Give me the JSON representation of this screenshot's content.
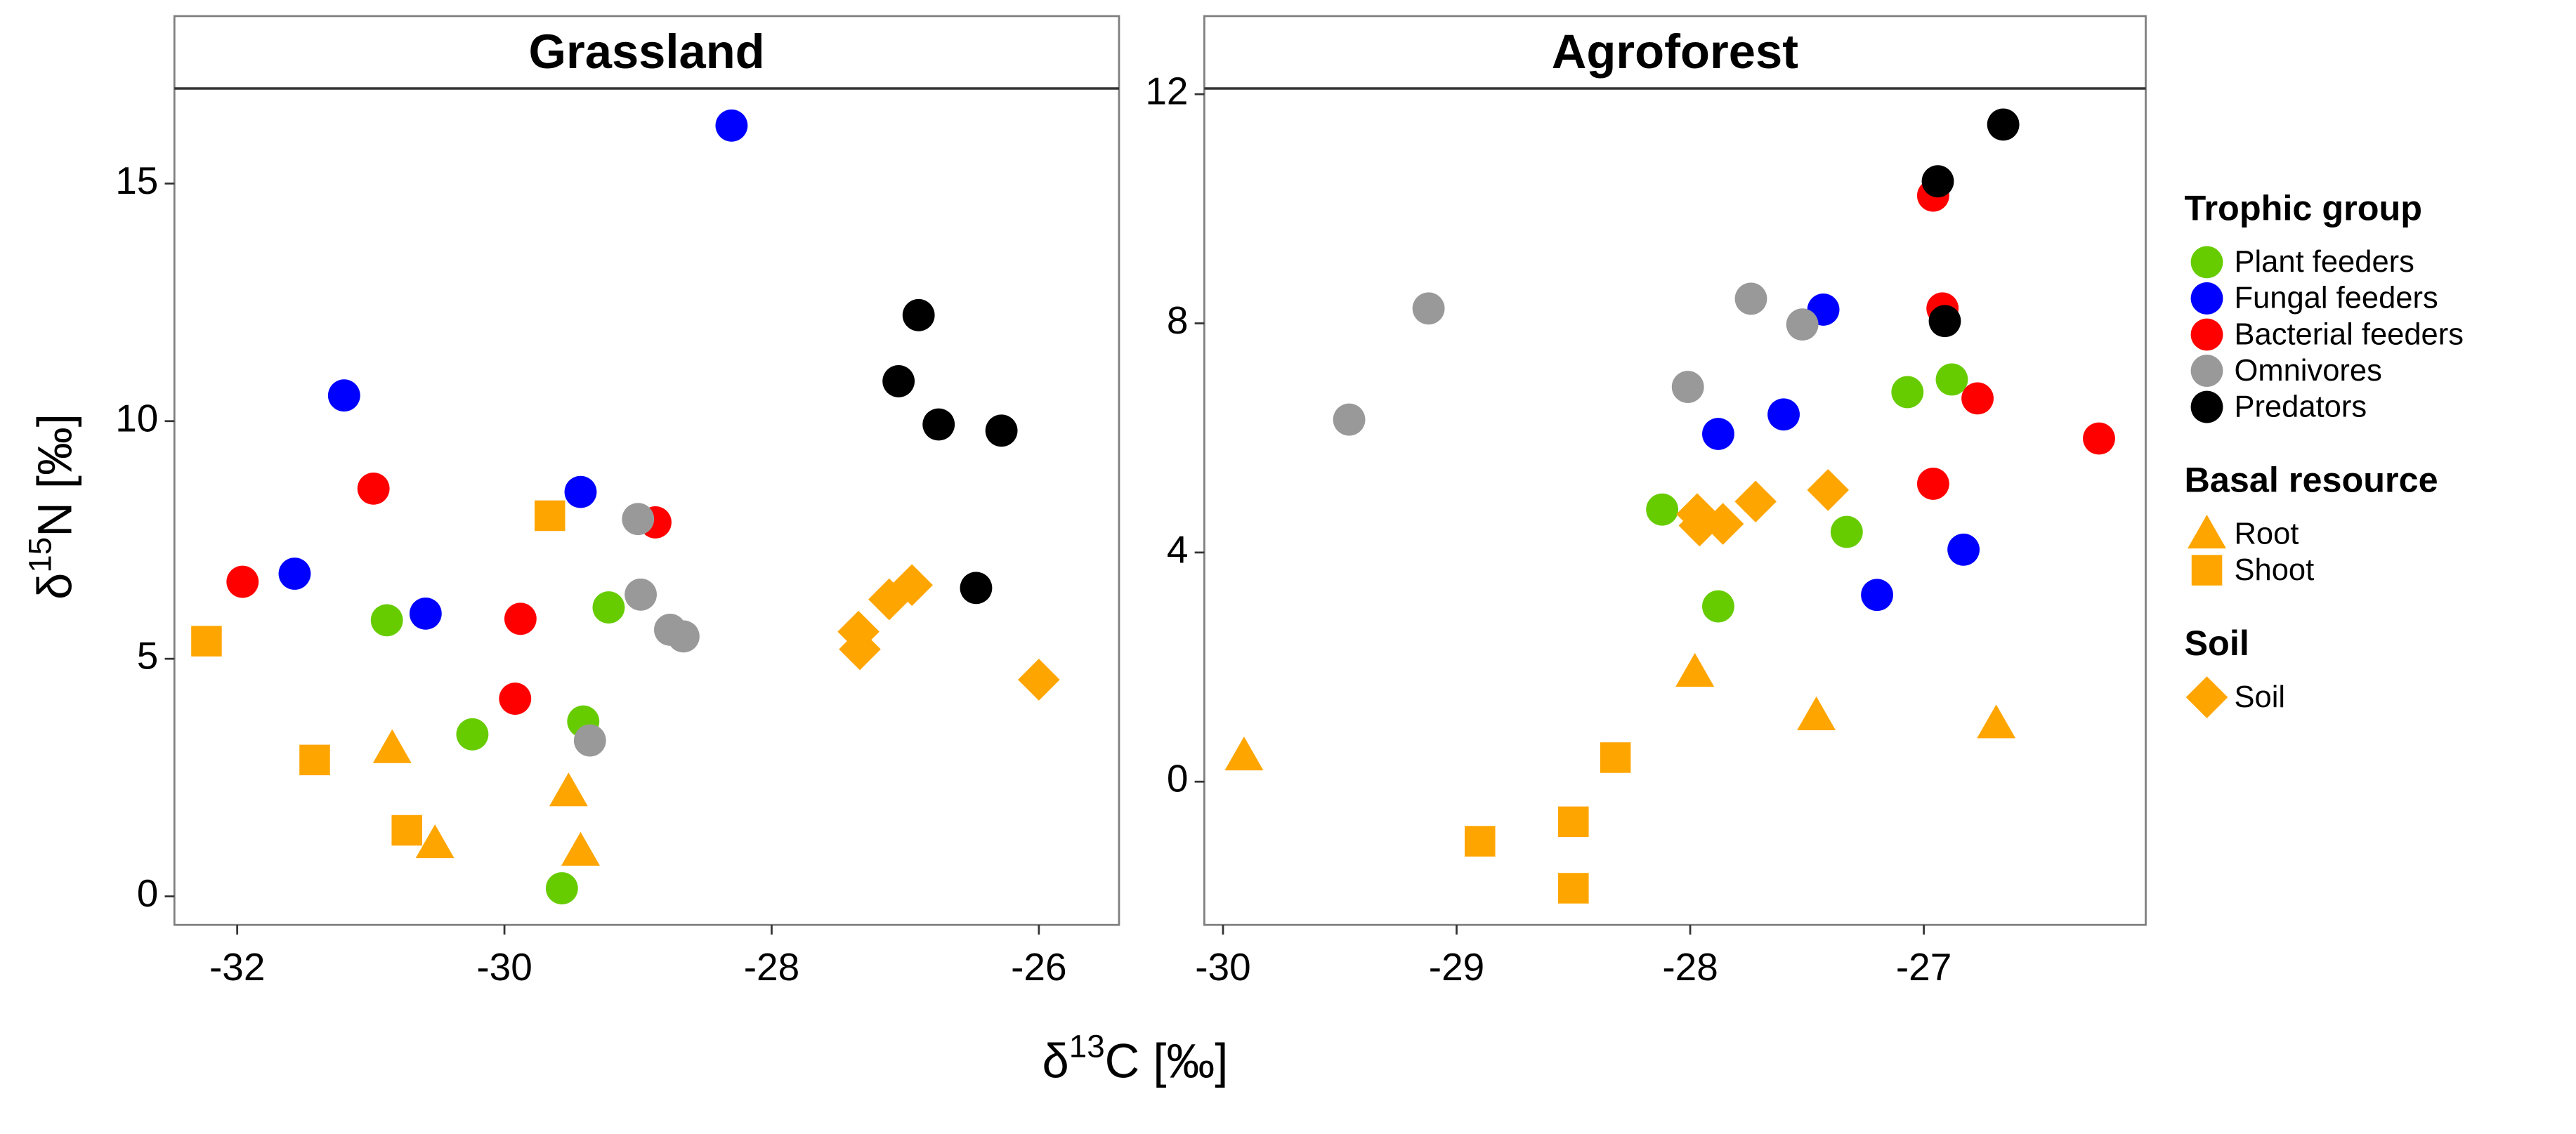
{
  "chart_data": [
    {
      "type": "scatter",
      "title": "Grassland",
      "xlim": [
        -32.47,
        -25.4
      ],
      "xticks": [
        -32,
        -30,
        -28,
        -26
      ],
      "ylim": [
        -0.6,
        17
      ],
      "yticks": [
        0,
        5,
        10,
        15
      ],
      "series": [
        {
          "x": [
            -30.88,
            -30.24,
            -29.41,
            -29.57,
            -29.22
          ],
          "values": [
            5.81,
            3.41,
            3.68,
            0.17,
            6.08
          ]
        },
        {
          "x": [
            -28.3,
            -31.2,
            -31.57,
            -30.59,
            -29.43
          ],
          "values": [
            16.22,
            10.54,
            6.79,
            5.95,
            8.51
          ]
        },
        {
          "x": [
            -31.96,
            -30.98,
            -29.88,
            -29.92,
            -28.87
          ],
          "values": [
            6.62,
            8.58,
            5.84,
            4.16,
            7.87
          ]
        },
        {
          "x": [
            -29.0,
            -28.98,
            -29.36,
            -28.76,
            -28.66
          ],
          "values": [
            7.94,
            6.35,
            3.28,
            5.61,
            5.47
          ]
        },
        {
          "x": [
            -26.9,
            -27.05,
            -26.75,
            -26.28,
            -26.47
          ],
          "values": [
            12.23,
            10.84,
            9.93,
            9.8,
            6.49
          ]
        },
        {
          "x": [
            -30.84,
            -29.52,
            -30.52,
            -29.43
          ],
          "values": [
            3.11,
            2.2,
            1.11,
            0.95
          ]
        },
        {
          "x": [
            -32.23,
            -29.66,
            -31.42,
            -30.73
          ],
          "values": [
            5.37,
            8.01,
            2.87,
            1.39
          ]
        },
        {
          "x": [
            -27.35,
            -27.34,
            -27.12,
            -26.95,
            -26.0
          ],
          "values": [
            5.57,
            5.2,
            6.25,
            6.55,
            4.56
          ]
        }
      ]
    },
    {
      "type": "scatter",
      "title": "Agroforest",
      "xlim": [
        -30.08,
        -26.05
      ],
      "xticks": [
        -30,
        -29,
        -28,
        -27
      ],
      "ylim": [
        -2.5,
        12.1
      ],
      "yticks": [
        0,
        4,
        8,
        12
      ],
      "series": [
        {
          "x": [
            -28.12,
            -27.88,
            -27.33,
            -27.07,
            -26.88
          ],
          "values": [
            4.75,
            3.06,
            4.36,
            6.8,
            7.02
          ]
        },
        {
          "x": [
            -27.43,
            -27.88,
            -27.6,
            -26.83,
            -27.2
          ],
          "values": [
            8.24,
            6.07,
            6.41,
            4.05,
            3.26
          ]
        },
        {
          "x": [
            -26.96,
            -26.92,
            -26.77,
            -26.96,
            -26.25
          ],
          "values": [
            10.23,
            8.26,
            6.69,
            5.2,
            5.99
          ]
        },
        {
          "x": [
            -29.46,
            -29.12,
            -28.01,
            -27.74,
            -27.52
          ],
          "values": [
            6.32,
            8.26,
            6.89,
            8.43,
            7.98
          ]
        },
        {
          "x": [
            -26.94,
            -26.66,
            -26.91
          ],
          "values": [
            10.48,
            11.47,
            8.04
          ]
        },
        {
          "x": [
            -29.91,
            -27.98,
            -27.46,
            -26.69
          ],
          "values": [
            0.45,
            1.91,
            1.15,
            1.01
          ]
        },
        {
          "x": [
            -28.9,
            -28.5,
            -28.5,
            -28.32
          ],
          "values": [
            -1.04,
            -0.7,
            -1.86,
            0.42
          ]
        },
        {
          "x": [
            -27.97,
            -27.96,
            -27.86,
            -27.72,
            -27.41
          ],
          "values": [
            4.67,
            4.47,
            4.5,
            4.89,
            5.09
          ]
        }
      ]
    }
  ],
  "x_label": [
    "δ",
    "13",
    "C [‰]"
  ],
  "y_label": [
    "δ",
    "15",
    "N [‰]"
  ],
  "legend": [
    {
      "title": "Trophic group",
      "entries": [
        {
          "name": "Plant feeders",
          "color": "#66cc00",
          "marker": "circle"
        },
        {
          "name": "Fungal feeders",
          "color": "#0000ff",
          "marker": "circle"
        },
        {
          "name": "Bacterial feeders",
          "color": "#ff0000",
          "marker": "circle"
        },
        {
          "name": "Omnivores",
          "color": "#999999",
          "marker": "circle"
        },
        {
          "name": "Predators",
          "color": "#000000",
          "marker": "circle"
        }
      ]
    },
    {
      "title": "Basal resource",
      "entries": [
        {
          "name": "Root",
          "color": "#ffa500",
          "marker": "triangle"
        },
        {
          "name": "Shoot",
          "color": "#ffa500",
          "marker": "square"
        }
      ]
    },
    {
      "title": "Soil",
      "entries": [
        {
          "name": "Soil",
          "color": "#ffa500",
          "marker": "diamond"
        }
      ]
    }
  ]
}
